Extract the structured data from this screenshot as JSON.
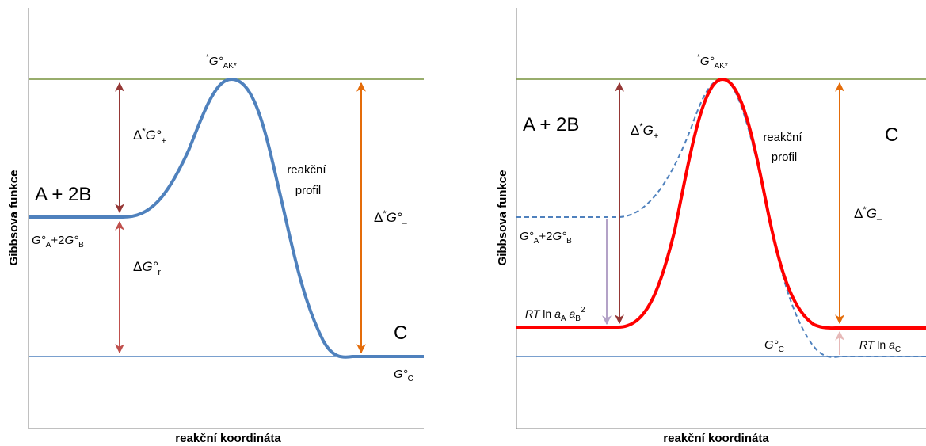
{
  "left": {
    "xlabel": "reakční koordináta",
    "ylabel": "Gibbsova funkce",
    "peak": {
      "pre": "*",
      "main": "G°",
      "sub": "AK*"
    },
    "reactants": "A + 2B",
    "reactants_energy": {
      "a": "G°",
      "a_sub": "A",
      "mid": "+2",
      "b": "G°",
      "b_sub": "B"
    },
    "dg_plus": {
      "pre": "Δ",
      "sup": "*",
      "main": "G°",
      "sub": "+"
    },
    "dg_r": {
      "pre": "Δ",
      "main": "G°",
      "sub": "r"
    },
    "profile": [
      "reakční",
      "profil"
    ],
    "dg_minus": {
      "pre": "Δ",
      "sup": "*",
      "main": "G°",
      "sub": "–"
    },
    "product": "C",
    "product_energy": {
      "main": "G°",
      "sub": "C"
    }
  },
  "right": {
    "xlabel": "reakční koordináta",
    "ylabel": "Gibbsova funkce",
    "peak": {
      "pre": "*",
      "main": "G°",
      "sub": "AK*"
    },
    "reactants": "A + 2B",
    "reactants_energy": {
      "a": "G°",
      "a_sub": "A",
      "mid": "+2",
      "b": "G°",
      "b_sub": "B"
    },
    "dg_plus": {
      "pre": "Δ",
      "sup": "*",
      "main": "G",
      "sub": "+"
    },
    "profile": [
      "reakční",
      "profil"
    ],
    "dg_minus": {
      "pre": "Δ",
      "sup": "*",
      "main": "G",
      "sub": "–"
    },
    "product": "C",
    "product_std": {
      "main": "G°",
      "sub": "C"
    },
    "rt_reactants": {
      "rt": "RT",
      "ln": " ln ",
      "a": "a",
      "a_sub": "A",
      "b": "a",
      "b_sub": "B",
      "b_sup": "2"
    },
    "rt_product": {
      "rt": "RT",
      "ln": " ln ",
      "a": "a",
      "a_sub": "C"
    }
  },
  "colors": {
    "top_line": "#76923c",
    "bottom_line": "#4f81bd",
    "profile_blue": "#4f81bd",
    "profile_red": "#ff0000",
    "arrow_dark_red": "#953735",
    "arrow_red": "#c0504d",
    "arrow_orange": "#e46c0a",
    "arrow_lilac": "#b3a2c7",
    "arrow_pink": "#e6b9b8",
    "axis": "#808080"
  }
}
